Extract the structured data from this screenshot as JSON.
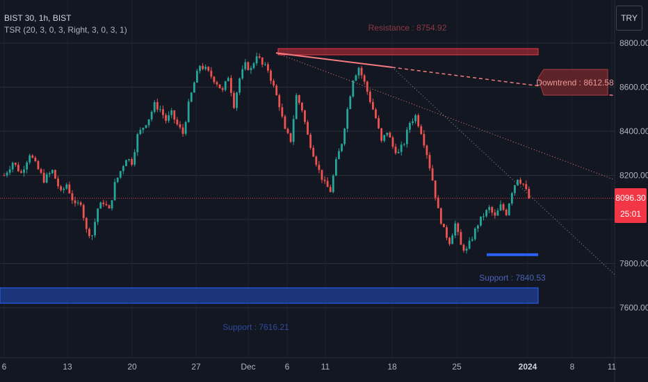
{
  "header": {
    "symbol": "BIST 30, 1h, BIST",
    "indicator": "TSR (20, 3, 0, 3, Right, 3, 0, 3, 1)",
    "currency_button": "TRY"
  },
  "price_tag": {
    "price": "8096.30",
    "timer": "25:01"
  },
  "chart_data": {
    "type": "candlestick",
    "title": "",
    "x_ticks": [
      "6",
      "13",
      "20",
      "27",
      "Dec",
      "6",
      "11",
      "18",
      "25",
      "2024",
      "8",
      "11"
    ],
    "y_ticks": [
      "8800.00",
      "8600.00",
      "8400.00",
      "8200.00",
      "7800.00",
      "7600.00"
    ],
    "ylim": [
      7500,
      8850
    ],
    "grid": true,
    "colors": {
      "up": "#26a69a",
      "down": "#ef5350",
      "support": "#2962ff",
      "resistance": "#f23645"
    },
    "annotations": {
      "resistance": "Resistance : 8754.92",
      "downtrend": "Downtrend : 8612.58",
      "support_upper": "Support : 7840.53",
      "support_lower": "Support : 7616.21"
    },
    "levels": {
      "resistance": 8754.92,
      "downtrend": 8612.58,
      "support_upper": 7840.53,
      "support_lower": 7616.21,
      "last_price": 8096.3
    },
    "close_path": [
      [
        0,
        8200
      ],
      [
        3,
        8260
      ],
      [
        6,
        8210
      ],
      [
        9,
        8300
      ],
      [
        11,
        8250
      ],
      [
        14,
        8180
      ],
      [
        17,
        8220
      ],
      [
        20,
        8120
      ],
      [
        22,
        8160
      ],
      [
        25,
        8060
      ],
      [
        27,
        8080
      ],
      [
        29,
        7950
      ],
      [
        31,
        7930
      ],
      [
        33,
        8050
      ],
      [
        35,
        8080
      ],
      [
        37,
        8040
      ],
      [
        39,
        8160
      ],
      [
        41,
        8220
      ],
      [
        43,
        8280
      ],
      [
        45,
        8260
      ],
      [
        47,
        8380
      ],
      [
        49,
        8420
      ],
      [
        51,
        8460
      ],
      [
        53,
        8520
      ],
      [
        55,
        8500
      ],
      [
        57,
        8450
      ],
      [
        59,
        8480
      ],
      [
        61,
        8430
      ],
      [
        63,
        8390
      ],
      [
        65,
        8520
      ],
      [
        67,
        8620
      ],
      [
        69,
        8700
      ],
      [
        71,
        8680
      ],
      [
        73,
        8650
      ],
      [
        75,
        8620
      ],
      [
        77,
        8580
      ],
      [
        79,
        8650
      ],
      [
        81,
        8520
      ],
      [
        83,
        8640
      ],
      [
        85,
        8700
      ],
      [
        87,
        8680
      ],
      [
        89,
        8750
      ],
      [
        91,
        8700
      ],
      [
        93,
        8680
      ],
      [
        95,
        8600
      ],
      [
        97,
        8520
      ],
      [
        99,
        8400
      ],
      [
        101,
        8360
      ],
      [
        103,
        8560
      ],
      [
        105,
        8500
      ],
      [
        107,
        8380
      ],
      [
        109,
        8300
      ],
      [
        111,
        8220
      ],
      [
        113,
        8160
      ],
      [
        115,
        8130
      ],
      [
        117,
        8260
      ],
      [
        119,
        8350
      ],
      [
        121,
        8500
      ],
      [
        123,
        8640
      ],
      [
        125,
        8690
      ],
      [
        127,
        8620
      ],
      [
        129,
        8540
      ],
      [
        131,
        8460
      ],
      [
        133,
        8350
      ],
      [
        135,
        8400
      ],
      [
        137,
        8330
      ],
      [
        139,
        8300
      ],
      [
        141,
        8350
      ],
      [
        143,
        8440
      ],
      [
        145,
        8470
      ],
      [
        147,
        8400
      ],
      [
        149,
        8300
      ],
      [
        151,
        8180
      ],
      [
        153,
        8040
      ],
      [
        155,
        7950
      ],
      [
        157,
        7900
      ],
      [
        159,
        7980
      ],
      [
        161,
        7880
      ],
      [
        163,
        7860
      ],
      [
        165,
        7920
      ],
      [
        167,
        7980
      ],
      [
        169,
        8020
      ],
      [
        171,
        8050
      ],
      [
        173,
        8010
      ],
      [
        175,
        8060
      ],
      [
        177,
        8030
      ],
      [
        179,
        8130
      ],
      [
        181,
        8190
      ],
      [
        183,
        8160
      ],
      [
        185,
        8096
      ]
    ]
  }
}
